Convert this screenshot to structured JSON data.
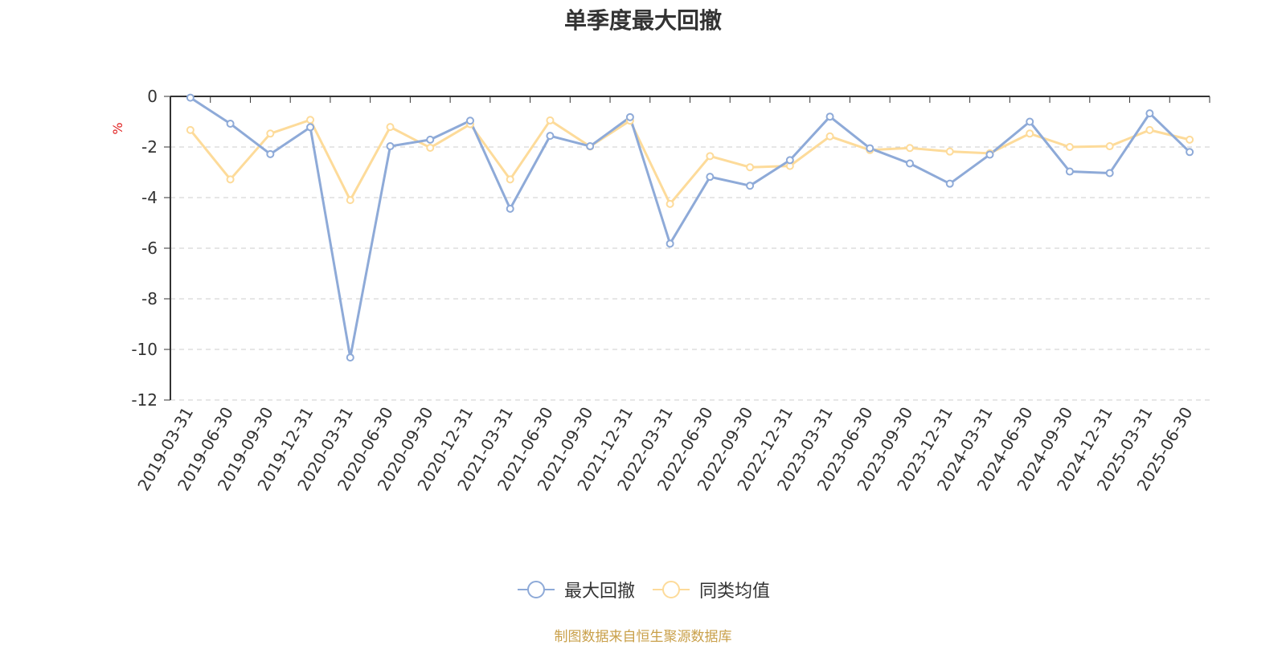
{
  "chart_data": {
    "type": "line",
    "title": "单季度最大回撤",
    "ylabel": "%",
    "xlabel": "",
    "ylim": [
      -12,
      0
    ],
    "yticks": [
      0,
      -2,
      -4,
      -6,
      -8,
      -10,
      -12
    ],
    "grid": true,
    "legend_position": "bottom",
    "x": [
      "2019-03-31",
      "2019-06-30",
      "2019-09-30",
      "2019-12-31",
      "2020-03-31",
      "2020-06-30",
      "2020-09-30",
      "2020-12-31",
      "2021-03-31",
      "2021-06-30",
      "2021-09-30",
      "2021-12-31",
      "2022-03-31",
      "2022-06-30",
      "2022-09-30",
      "2022-12-31",
      "2023-03-31",
      "2023-06-30",
      "2023-09-30",
      "2023-12-31",
      "2024-03-31",
      "2024-06-30",
      "2024-09-30",
      "2024-12-31",
      "2025-03-31",
      "2025-06-30"
    ],
    "series": [
      {
        "name": "最大回撤",
        "color": "#8eaad8",
        "values": [
          -0.05,
          -1.08,
          -2.28,
          -1.22,
          -10.32,
          -1.97,
          -1.71,
          -0.96,
          -4.44,
          -1.56,
          -1.97,
          -0.82,
          -5.82,
          -3.18,
          -3.53,
          -2.52,
          -0.8,
          -2.05,
          -2.65,
          -3.45,
          -2.3,
          -1.0,
          -2.97,
          -3.03,
          -0.67,
          -2.2
        ]
      },
      {
        "name": "同类均值",
        "color": "#fddb9a",
        "values": [
          -1.33,
          -3.28,
          -1.47,
          -0.93,
          -4.1,
          -1.21,
          -2.03,
          -1.1,
          -3.28,
          -0.95,
          -1.98,
          -0.96,
          -4.25,
          -2.36,
          -2.8,
          -2.75,
          -1.58,
          -2.12,
          -2.04,
          -2.18,
          -2.25,
          -1.47,
          -2.0,
          -1.97,
          -1.33,
          -1.71
        ]
      }
    ]
  },
  "source_note": "制图数据来自恒生聚源数据库"
}
